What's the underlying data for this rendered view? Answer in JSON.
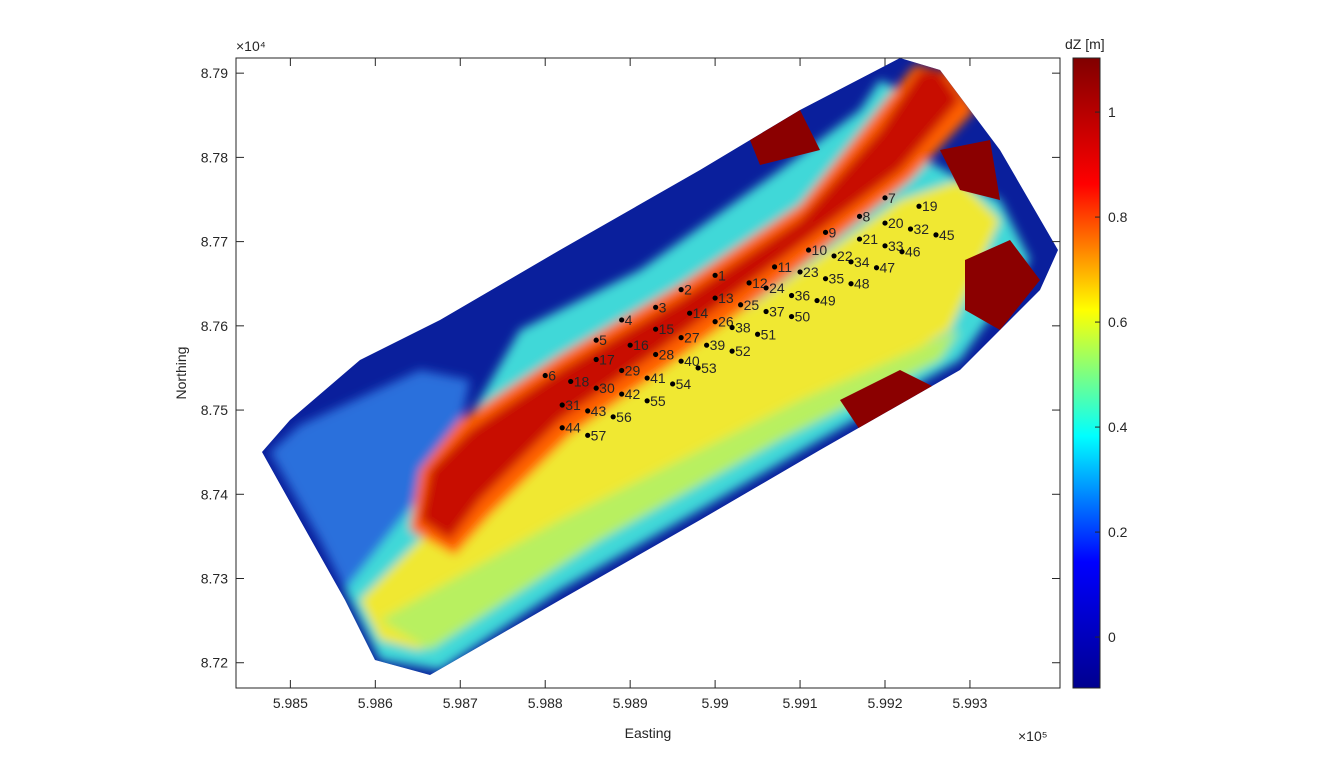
{
  "chart_data": {
    "type": "scatter",
    "x_label": "Easting",
    "y_label": "Northing",
    "x_exponent": "×10⁵",
    "y_exponent": "×10⁴",
    "xlim": [
      5.98436,
      5.99406
    ],
    "ylim": [
      8.717,
      8.7918
    ],
    "xticks": [
      5.985,
      5.986,
      5.987,
      5.988,
      5.989,
      5.99,
      5.991,
      5.992,
      5.993
    ],
    "yticks": [
      8.72,
      8.73,
      8.74,
      8.75,
      8.76,
      8.77,
      8.78,
      8.79
    ],
    "color": "#000000",
    "points": {
      "labels": [
        "1",
        "2",
        "3",
        "4",
        "5",
        "6",
        "7",
        "8",
        "9",
        "10",
        "11",
        "12",
        "13",
        "14",
        "15",
        "16",
        "17",
        "18",
        "19",
        "20",
        "21",
        "22",
        "23",
        "24",
        "25",
        "26",
        "27",
        "28",
        "29",
        "30",
        "31",
        "32",
        "33",
        "34",
        "35",
        "36",
        "37",
        "38",
        "39",
        "40",
        "41",
        "42",
        "43",
        "44",
        "45",
        "46",
        "47",
        "48",
        "49",
        "50",
        "51",
        "52",
        "53",
        "54",
        "55",
        "56",
        "57"
      ],
      "x": [
        5.99,
        5.9896,
        5.9893,
        5.9889,
        5.9886,
        5.988,
        5.992,
        5.9917,
        5.9913,
        5.9911,
        5.9907,
        5.9904,
        5.99,
        5.9897,
        5.9893,
        5.989,
        5.9886,
        5.9883,
        5.9924,
        5.992,
        5.9917,
        5.9914,
        5.991,
        5.9906,
        5.9903,
        5.99,
        5.9896,
        5.9893,
        5.9889,
        5.9886,
        5.9882,
        5.9923,
        5.992,
        5.9916,
        5.9913,
        5.9909,
        5.9906,
        5.9902,
        5.9899,
        5.9896,
        5.9892,
        5.9889,
        5.9885,
        5.9882,
        5.9926,
        5.9922,
        5.9919,
        5.9916,
        5.9912,
        5.9909,
        5.9905,
        5.9902,
        5.9898,
        5.9895,
        5.9892,
        5.9888,
        5.9885
      ],
      "y": [
        8.766,
        8.7643,
        8.7622,
        8.7607,
        8.7583,
        8.7541,
        8.7752,
        8.773,
        8.7711,
        8.769,
        8.767,
        8.7651,
        8.7633,
        8.7615,
        8.7596,
        8.7577,
        8.756,
        8.7534,
        8.7742,
        8.7722,
        8.7703,
        8.7683,
        8.7664,
        8.7645,
        8.7625,
        8.7605,
        8.7586,
        8.7566,
        8.7547,
        8.7526,
        8.7506,
        8.7715,
        8.7695,
        8.7676,
        8.7656,
        8.7636,
        8.7617,
        8.7598,
        8.7577,
        8.7558,
        8.7538,
        8.7519,
        8.7499,
        8.7479,
        8.7708,
        8.7688,
        8.7669,
        8.765,
        8.763,
        8.7611,
        8.759,
        8.757,
        8.755,
        8.7531,
        8.7511,
        8.7492,
        8.747
      ]
    },
    "colorbar": {
      "label": "dZ [m]",
      "colormap": "jet",
      "lim": [
        -0.097,
        1.103
      ],
      "ticks": [
        0,
        0.2,
        0.4,
        0.6,
        0.8,
        1
      ]
    }
  }
}
